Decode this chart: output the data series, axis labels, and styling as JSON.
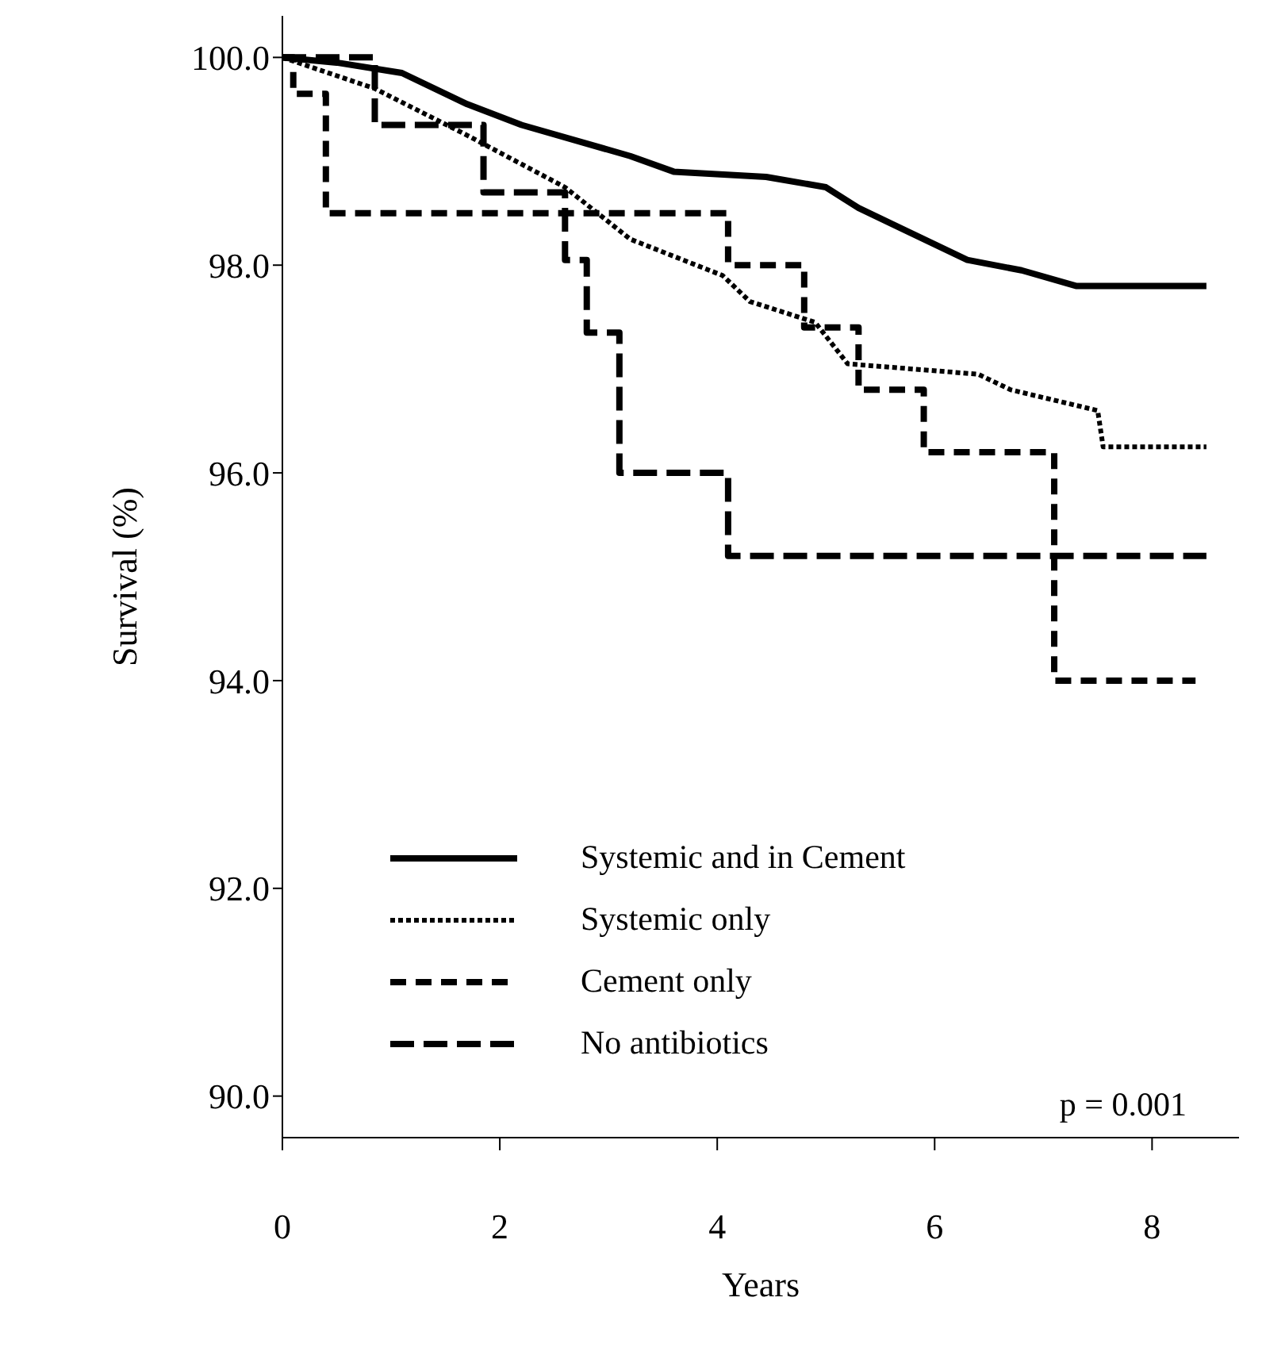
{
  "chart_data": {
    "type": "line",
    "xlabel": "Years",
    "ylabel": "Survival (%)",
    "xlim": [
      0,
      8.8
    ],
    "xticks": [
      0,
      2,
      4,
      6,
      8
    ],
    "ylim": [
      89.6,
      100.4
    ],
    "yticks": [
      {
        "value": 90,
        "label": "90.0"
      },
      {
        "value": 92,
        "label": "92.0"
      },
      {
        "value": 94,
        "label": "94.0"
      },
      {
        "value": 96,
        "label": "96.0"
      },
      {
        "value": 98,
        "label": "98.0"
      },
      {
        "value": 100,
        "label": "100.0"
      }
    ],
    "grid": false,
    "legend": "bottom",
    "annotations": [
      "p = 0.001"
    ],
    "series": [
      {
        "name": "Systemic and in Cement",
        "type": "line",
        "line_style": "solid",
        "color": "#000000",
        "x": [
          0,
          0.5,
          1.1,
          1.7,
          2.2,
          3.2,
          3.6,
          4.45,
          5.0,
          5.3,
          5.7,
          6.3,
          6.8,
          7.3,
          8.5
        ],
        "values": [
          100,
          99.95,
          99.85,
          99.55,
          99.35,
          99.05,
          98.9,
          98.85,
          98.75,
          98.55,
          98.35,
          98.05,
          97.95,
          97.8,
          97.8
        ]
      },
      {
        "name": "Systemic only",
        "type": "line",
        "line_style": "dotted",
        "color": "#000000",
        "x": [
          0,
          0.85,
          1.7,
          2.6,
          3.2,
          4.05,
          4.3,
          4.9,
          5.2,
          6.4,
          6.7,
          7.5,
          7.55,
          8.5
        ],
        "values": [
          100,
          99.7,
          99.25,
          98.75,
          98.25,
          97.9,
          97.65,
          97.45,
          97.05,
          96.95,
          96.8,
          96.6,
          96.25,
          96.25
        ]
      },
      {
        "name": "Cement only",
        "type": "step",
        "line_style": "dashed",
        "color": "#000000",
        "x": [
          0,
          0.1,
          0.4,
          4.1,
          4.8,
          5.3,
          5.9,
          7.1,
          8.4
        ],
        "values": [
          100,
          99.65,
          98.5,
          98.0,
          97.4,
          96.8,
          96.2,
          94.0,
          94.0
        ]
      },
      {
        "name": "No antibiotics",
        "type": "step",
        "line_style": "dashed",
        "color": "#000000",
        "x": [
          0,
          0.85,
          1.85,
          2.6,
          2.8,
          3.1,
          4.1,
          8.5
        ],
        "values": [
          100,
          99.35,
          98.7,
          98.05,
          97.35,
          96.0,
          95.2,
          95.2
        ]
      }
    ]
  }
}
